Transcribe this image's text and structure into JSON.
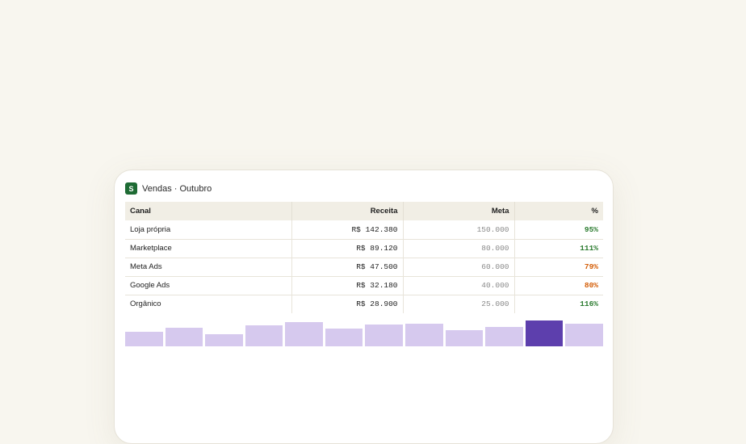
{
  "app": {
    "icon_letter": "S",
    "title": "Vendas · Outubro"
  },
  "table": {
    "headers": [
      "Canal",
      "Receita",
      "Meta",
      "%"
    ],
    "rows": [
      {
        "canal": "Loja própria",
        "receita": "R$ 142.380",
        "meta": "150.000",
        "pct": "95%",
        "status": "good"
      },
      {
        "canal": "Marketplace",
        "receita": "R$ 89.120",
        "meta": "80.000",
        "pct": "111%",
        "status": "good"
      },
      {
        "canal": "Meta Ads",
        "receita": "R$ 47.500",
        "meta": "60.000",
        "pct": "79%",
        "status": "warn"
      },
      {
        "canal": "Google Ads",
        "receita": "R$ 32.180",
        "meta": "40.000",
        "pct": "80%",
        "status": "warn"
      },
      {
        "canal": "Orgânico",
        "receita": "R$ 28.900",
        "meta": "25.000",
        "pct": "116%",
        "status": "good"
      }
    ]
  },
  "sparkline": {
    "levels": [
      0.55,
      0.72,
      0.47,
      0.8,
      0.93,
      0.68,
      0.84,
      0.88,
      0.63,
      0.75,
      1.0,
      0.86
    ],
    "active_index": 10
  },
  "colors": {
    "good": "#2e7d32",
    "warn": "#d45d06",
    "bar": "#d6c9ee",
    "bar_active": "#5d3fad",
    "app_icon": "#1e6b34"
  }
}
